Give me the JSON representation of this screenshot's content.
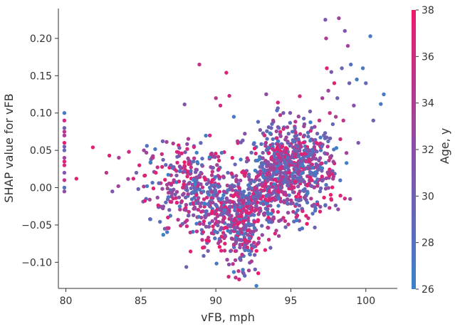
{
  "chart_data": {
    "type": "scatter",
    "title": "",
    "xlabel": "vFB, mph",
    "ylabel": "SHAP value for vFB",
    "xlim": [
      79.5,
      102.1
    ],
    "ylim": [
      -0.135,
      0.24
    ],
    "x_ticks": [
      80,
      85,
      90,
      95,
      100
    ],
    "y_ticks": [
      -0.1,
      -0.05,
      0.0,
      0.05,
      0.1,
      0.15,
      0.2
    ],
    "x_tick_labels": [
      "80",
      "85",
      "90",
      "95",
      "100"
    ],
    "y_tick_labels": [
      "−0.10",
      "−0.05",
      "0.00",
      "0.05",
      "0.10",
      "0.15",
      "0.20"
    ],
    "grid": false,
    "colorbar": {
      "label": "Age, y",
      "range": [
        26,
        38
      ],
      "ticks": [
        26,
        28,
        30,
        32,
        34,
        36,
        38
      ],
      "tick_labels": [
        "26",
        "28",
        "30",
        "32",
        "34",
        "36",
        "38"
      ],
      "color_low": "#3b82c8",
      "color_mid": "#8a4fa6",
      "color_high": "#ef1a6c"
    },
    "points": [
      [
        79.9,
        0.1,
        27
      ],
      [
        79.9,
        0.09,
        36
      ],
      [
        79.9,
        0.08,
        30
      ],
      [
        79.9,
        0.07,
        34
      ],
      [
        79.9,
        0.06,
        37
      ],
      [
        79.9,
        0.05,
        29
      ],
      [
        79.9,
        0.04,
        33
      ],
      [
        79.9,
        0.03,
        36
      ],
      [
        79.9,
        0.02,
        31
      ],
      [
        79.9,
        0.01,
        35
      ],
      [
        79.9,
        0.0,
        28
      ],
      [
        79.9,
        -0.005,
        32
      ],
      [
        79.9,
        0.035,
        37
      ],
      [
        79.9,
        0.055,
        30
      ],
      [
        79.9,
        0.075,
        35
      ],
      [
        80.7,
        0.012,
        37
      ],
      [
        81.8,
        0.054,
        37
      ],
      [
        82.7,
        0.02,
        35
      ],
      [
        82.9,
        0.043,
        37
      ],
      [
        83.1,
        -0.005,
        31
      ],
      [
        83.5,
        0.002,
        33
      ],
      [
        84.2,
        0.048,
        36
      ],
      [
        84.5,
        0.012,
        37
      ],
      [
        84.7,
        0.02,
        30
      ],
      [
        84.9,
        0.03,
        37
      ],
      [
        85.2,
        0.05,
        33
      ],
      [
        85.4,
        0.056,
        28
      ],
      [
        85.8,
        0.04,
        35
      ],
      [
        86.0,
        0.02,
        37
      ],
      [
        86.2,
        0.006,
        29
      ],
      [
        86.4,
        0.045,
        36
      ],
      [
        86.6,
        -0.055,
        31
      ],
      [
        86.8,
        -0.04,
        37
      ],
      [
        87.0,
        0.03,
        30
      ],
      [
        87.2,
        0.01,
        34
      ],
      [
        87.4,
        -0.02,
        37
      ],
      [
        87.6,
        0.022,
        28
      ],
      [
        87.8,
        0.0,
        36
      ],
      [
        88.0,
        -0.03,
        33
      ],
      [
        88.1,
        0.015,
        37
      ],
      [
        88.3,
        -0.06,
        35
      ],
      [
        88.5,
        0.035,
        29
      ],
      [
        88.7,
        -0.01,
        37
      ],
      [
        88.9,
        0.165,
        35
      ],
      [
        89.0,
        0.02,
        31
      ],
      [
        89.2,
        -0.045,
        37
      ],
      [
        89.4,
        0.005,
        30
      ],
      [
        89.6,
        0.07,
        36
      ],
      [
        89.8,
        -0.02,
        33
      ],
      [
        90.0,
        0.12,
        35
      ],
      [
        90.1,
        -0.06,
        28
      ],
      [
        90.2,
        0.025,
        37
      ],
      [
        90.3,
        0.11,
        36
      ],
      [
        90.4,
        -0.035,
        30
      ],
      [
        90.5,
        0.015,
        34
      ],
      [
        90.6,
        -0.075,
        37
      ],
      [
        90.7,
        0.154,
        37
      ],
      [
        90.8,
        0.02,
        29
      ],
      [
        90.9,
        0.123,
        36
      ],
      [
        91.0,
        -0.05,
        31
      ],
      [
        91.1,
        0.04,
        37
      ],
      [
        91.2,
        0.095,
        27
      ],
      [
        91.3,
        -0.085,
        36
      ],
      [
        91.4,
        0.01,
        33
      ],
      [
        91.5,
        -0.03,
        37
      ],
      [
        91.6,
        -0.095,
        29
      ],
      [
        91.7,
        -0.06,
        35
      ],
      [
        91.8,
        -0.11,
        27
      ],
      [
        91.85,
        -0.115,
        31
      ],
      [
        91.9,
        -0.07,
        37
      ],
      [
        92.0,
        -0.04,
        30
      ],
      [
        92.1,
        -0.08,
        36
      ],
      [
        92.2,
        -0.02,
        28
      ],
      [
        92.3,
        -0.06,
        34
      ],
      [
        92.4,
        -0.03,
        37
      ],
      [
        92.5,
        -0.05,
        29
      ],
      [
        92.6,
        0.0,
        35
      ],
      [
        92.7,
        -0.025,
        31
      ],
      [
        92.8,
        -0.045,
        37
      ],
      [
        92.9,
        0.01,
        30
      ],
      [
        93.0,
        -0.015,
        36
      ],
      [
        93.1,
        0.03,
        28
      ],
      [
        93.2,
        -0.035,
        33
      ],
      [
        93.3,
        0.005,
        37
      ],
      [
        93.4,
        0.05,
        29
      ],
      [
        93.5,
        0.02,
        35
      ],
      [
        93.6,
        -0.01,
        31
      ],
      [
        93.7,
        0.04,
        37
      ],
      [
        93.8,
        0.065,
        28
      ],
      [
        93.9,
        0.025,
        34
      ],
      [
        94.0,
        0.0,
        30
      ],
      [
        94.1,
        0.045,
        36
      ],
      [
        94.2,
        0.08,
        29
      ],
      [
        94.3,
        0.015,
        33
      ],
      [
        94.4,
        0.055,
        37
      ],
      [
        94.5,
        0.1,
        31
      ],
      [
        94.6,
        0.035,
        28
      ],
      [
        94.7,
        -0.01,
        35
      ],
      [
        94.8,
        0.06,
        30
      ],
      [
        94.9,
        0.02,
        37
      ],
      [
        95.0,
        0.04,
        32
      ],
      [
        95.1,
        0.075,
        28
      ],
      [
        95.2,
        0.0,
        36
      ],
      [
        95.3,
        0.05,
        30
      ],
      [
        95.4,
        0.03,
        34
      ],
      [
        95.5,
        0.065,
        29
      ],
      [
        95.6,
        -0.005,
        33
      ],
      [
        95.7,
        0.045,
        37
      ],
      [
        95.8,
        0.02,
        27
      ],
      [
        95.9,
        0.07,
        31
      ],
      [
        96.0,
        0.035,
        35
      ],
      [
        96.1,
        -0.02,
        28
      ],
      [
        96.2,
        0.05,
        32
      ],
      [
        96.3,
        0.01,
        36
      ],
      [
        96.4,
        0.08,
        30
      ],
      [
        96.5,
        0.04,
        33
      ],
      [
        96.6,
        -0.025,
        29
      ],
      [
        96.7,
        0.06,
        37
      ],
      [
        96.8,
        0.025,
        31
      ],
      [
        96.9,
        0.09,
        35
      ],
      [
        97.0,
        0.05,
        28
      ],
      [
        97.1,
        0.12,
        34
      ],
      [
        97.2,
        0.07,
        30
      ],
      [
        97.3,
        0.225,
        31
      ],
      [
        97.35,
        0.2,
        34
      ],
      [
        97.4,
        0.16,
        37
      ],
      [
        97.5,
        0.13,
        33
      ],
      [
        97.6,
        0.1,
        36
      ],
      [
        97.7,
        0.155,
        31
      ],
      [
        97.8,
        0.085,
        29
      ],
      [
        97.9,
        0.14,
        37
      ],
      [
        98.0,
        0.095,
        34
      ],
      [
        98.1,
        0.12,
        30
      ],
      [
        98.2,
        0.227,
        33
      ],
      [
        98.3,
        0.065,
        36
      ],
      [
        98.4,
        0.16,
        29
      ],
      [
        98.5,
        0.09,
        35
      ],
      [
        98.6,
        0.21,
        31
      ],
      [
        98.8,
        0.19,
        33
      ],
      [
        98.9,
        0.14,
        30
      ],
      [
        99.0,
        0.165,
        28
      ],
      [
        99.2,
        0.11,
        32
      ],
      [
        99.4,
        0.145,
        27
      ],
      [
        99.5,
        0.06,
        31
      ],
      [
        99.8,
        0.16,
        27
      ],
      [
        100.0,
        0.14,
        29
      ],
      [
        100.3,
        0.203,
        27
      ],
      [
        100.5,
        0.09,
        30
      ],
      [
        101.0,
        0.112,
        27
      ],
      [
        101.2,
        0.125,
        27
      ]
    ],
    "density_clusters": [
      {
        "cx": 88.2,
        "cy": 0.005,
        "sx": 1.4,
        "sy": 0.028,
        "n": 260
      },
      {
        "cx": 90.3,
        "cy": -0.03,
        "sx": 1.0,
        "sy": 0.03,
        "n": 240
      },
      {
        "cx": 91.8,
        "cy": -0.045,
        "sx": 0.55,
        "sy": 0.035,
        "n": 200
      },
      {
        "cx": 93.2,
        "cy": 0.0,
        "sx": 0.6,
        "sy": 0.035,
        "n": 190
      },
      {
        "cx": 94.5,
        "cy": 0.025,
        "sx": 0.9,
        "sy": 0.03,
        "n": 330
      },
      {
        "cx": 96.2,
        "cy": 0.025,
        "sx": 1.0,
        "sy": 0.03,
        "n": 300
      }
    ]
  }
}
